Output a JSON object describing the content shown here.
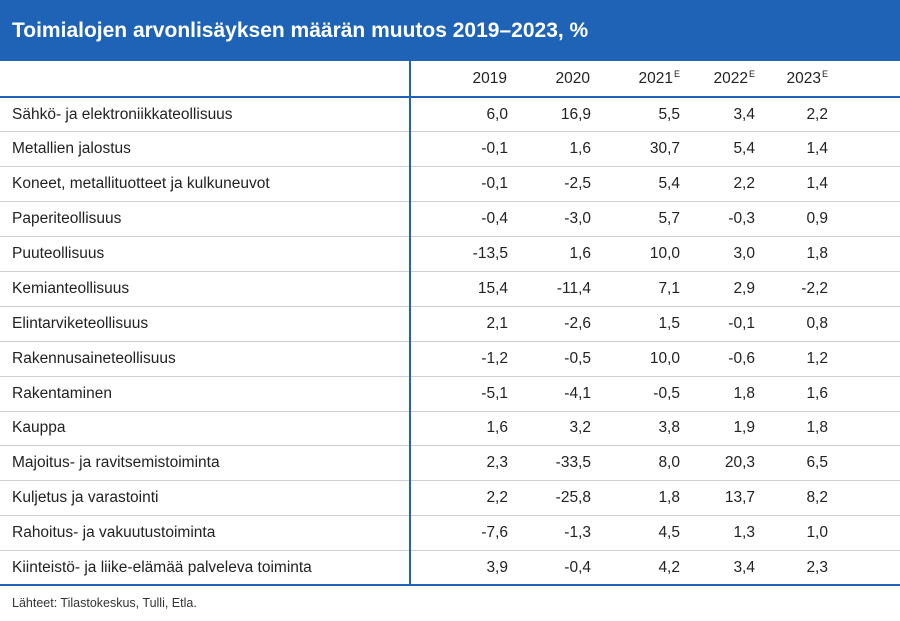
{
  "chart_data": {
    "type": "table",
    "title": "Toimialojen arvonlisäyksen määrän muutos 2019–2023, %",
    "columns": [
      {
        "label": "2019",
        "sup": ""
      },
      {
        "label": "2020",
        "sup": ""
      },
      {
        "label": "2021",
        "sup": "E"
      },
      {
        "label": "2022",
        "sup": "E"
      },
      {
        "label": "2023",
        "sup": "E"
      }
    ],
    "rows": [
      {
        "label": "Sähkö- ja elektroniikkateollisuus",
        "values": [
          "6,0",
          "16,9",
          "5,5",
          "3,4",
          "2,2"
        ]
      },
      {
        "label": "Metallien jalostus",
        "values": [
          "-0,1",
          "1,6",
          "30,7",
          "5,4",
          "1,4"
        ]
      },
      {
        "label": "Koneet, metallituotteet ja kulkuneuvot",
        "values": [
          "-0,1",
          "-2,5",
          "5,4",
          "2,2",
          "1,4"
        ]
      },
      {
        "label": "Paperiteollisuus",
        "values": [
          "-0,4",
          "-3,0",
          "5,7",
          "-0,3",
          "0,9"
        ]
      },
      {
        "label": "Puuteollisuus",
        "values": [
          "-13,5",
          "1,6",
          "10,0",
          "3,0",
          "1,8"
        ]
      },
      {
        "label": "Kemianteollisuus",
        "values": [
          "15,4",
          "-11,4",
          "7,1",
          "2,9",
          "-2,2"
        ]
      },
      {
        "label": "Elintarviketeollisuus",
        "values": [
          "2,1",
          "-2,6",
          "1,5",
          "-0,1",
          "0,8"
        ]
      },
      {
        "label": "Rakennusaineteollisuus",
        "values": [
          "-1,2",
          "-0,5",
          "10,0",
          "-0,6",
          "1,2"
        ]
      },
      {
        "label": "Rakentaminen",
        "values": [
          "-5,1",
          "-4,1",
          "-0,5",
          "1,8",
          "1,6"
        ]
      },
      {
        "label": "Kauppa",
        "values": [
          "1,6",
          "3,2",
          "3,8",
          "1,9",
          "1,8"
        ]
      },
      {
        "label": "Majoitus- ja ravitsemistoiminta",
        "values": [
          "2,3",
          "-33,5",
          "8,0",
          "20,3",
          "6,5"
        ]
      },
      {
        "label": "Kuljetus ja varastointi",
        "values": [
          "2,2",
          "-25,8",
          "1,8",
          "13,7",
          "8,2"
        ]
      },
      {
        "label": "Rahoitus- ja vakuutustoiminta",
        "values": [
          "-7,6",
          "-1,3",
          "4,5",
          "1,3",
          "1,0"
        ]
      },
      {
        "label": "Kiinteistö- ja liike-elämää palveleva toiminta",
        "values": [
          "3,9",
          "-0,4",
          "4,2",
          "3,4",
          "2,3"
        ]
      }
    ],
    "source": "Lähteet: Tilastokeskus, Tulli, Etla."
  },
  "colors": {
    "accent": "#1e63b5",
    "header_text": "#ffffff",
    "grid": "#cfcfcf"
  }
}
